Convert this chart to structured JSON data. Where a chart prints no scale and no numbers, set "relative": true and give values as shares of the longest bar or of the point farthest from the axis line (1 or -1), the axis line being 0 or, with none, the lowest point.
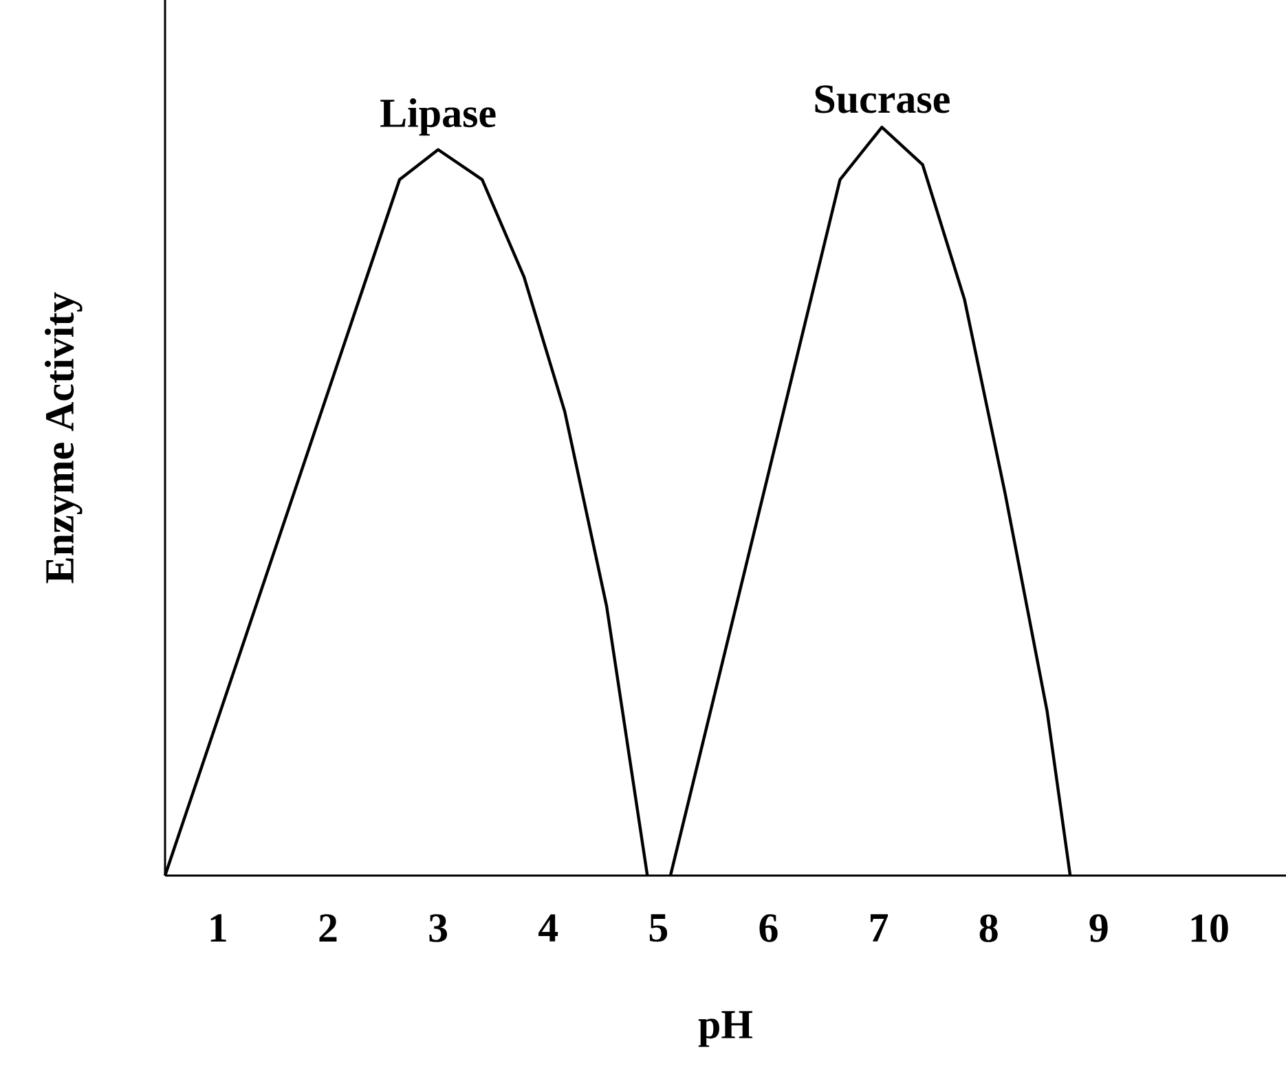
{
  "chart_data": {
    "type": "line",
    "xlabel": "pH",
    "ylabel": "Enzyme Activity",
    "relative": true,
    "xlim": [
      0.52,
      10.7
    ],
    "xticks": [
      1,
      2,
      3,
      4,
      5,
      6,
      7,
      8,
      9,
      10
    ],
    "marker": "none",
    "series": [
      {
        "name": "Lipase",
        "color": "#000000",
        "x": [
          0.52,
          2.65,
          3.0,
          3.4,
          3.78,
          4.15,
          4.53,
          4.9
        ],
        "values": [
          0,
          0.93,
          0.97,
          0.93,
          0.8,
          0.62,
          0.36,
          0
        ]
      },
      {
        "name": "Sucrase",
        "color": "#000000",
        "x": [
          5.11,
          6.65,
          7.03,
          7.4,
          7.78,
          8.15,
          8.53,
          8.74
        ],
        "values": [
          0,
          0.93,
          1,
          0.95,
          0.77,
          0.51,
          0.22,
          0
        ]
      }
    ]
  }
}
